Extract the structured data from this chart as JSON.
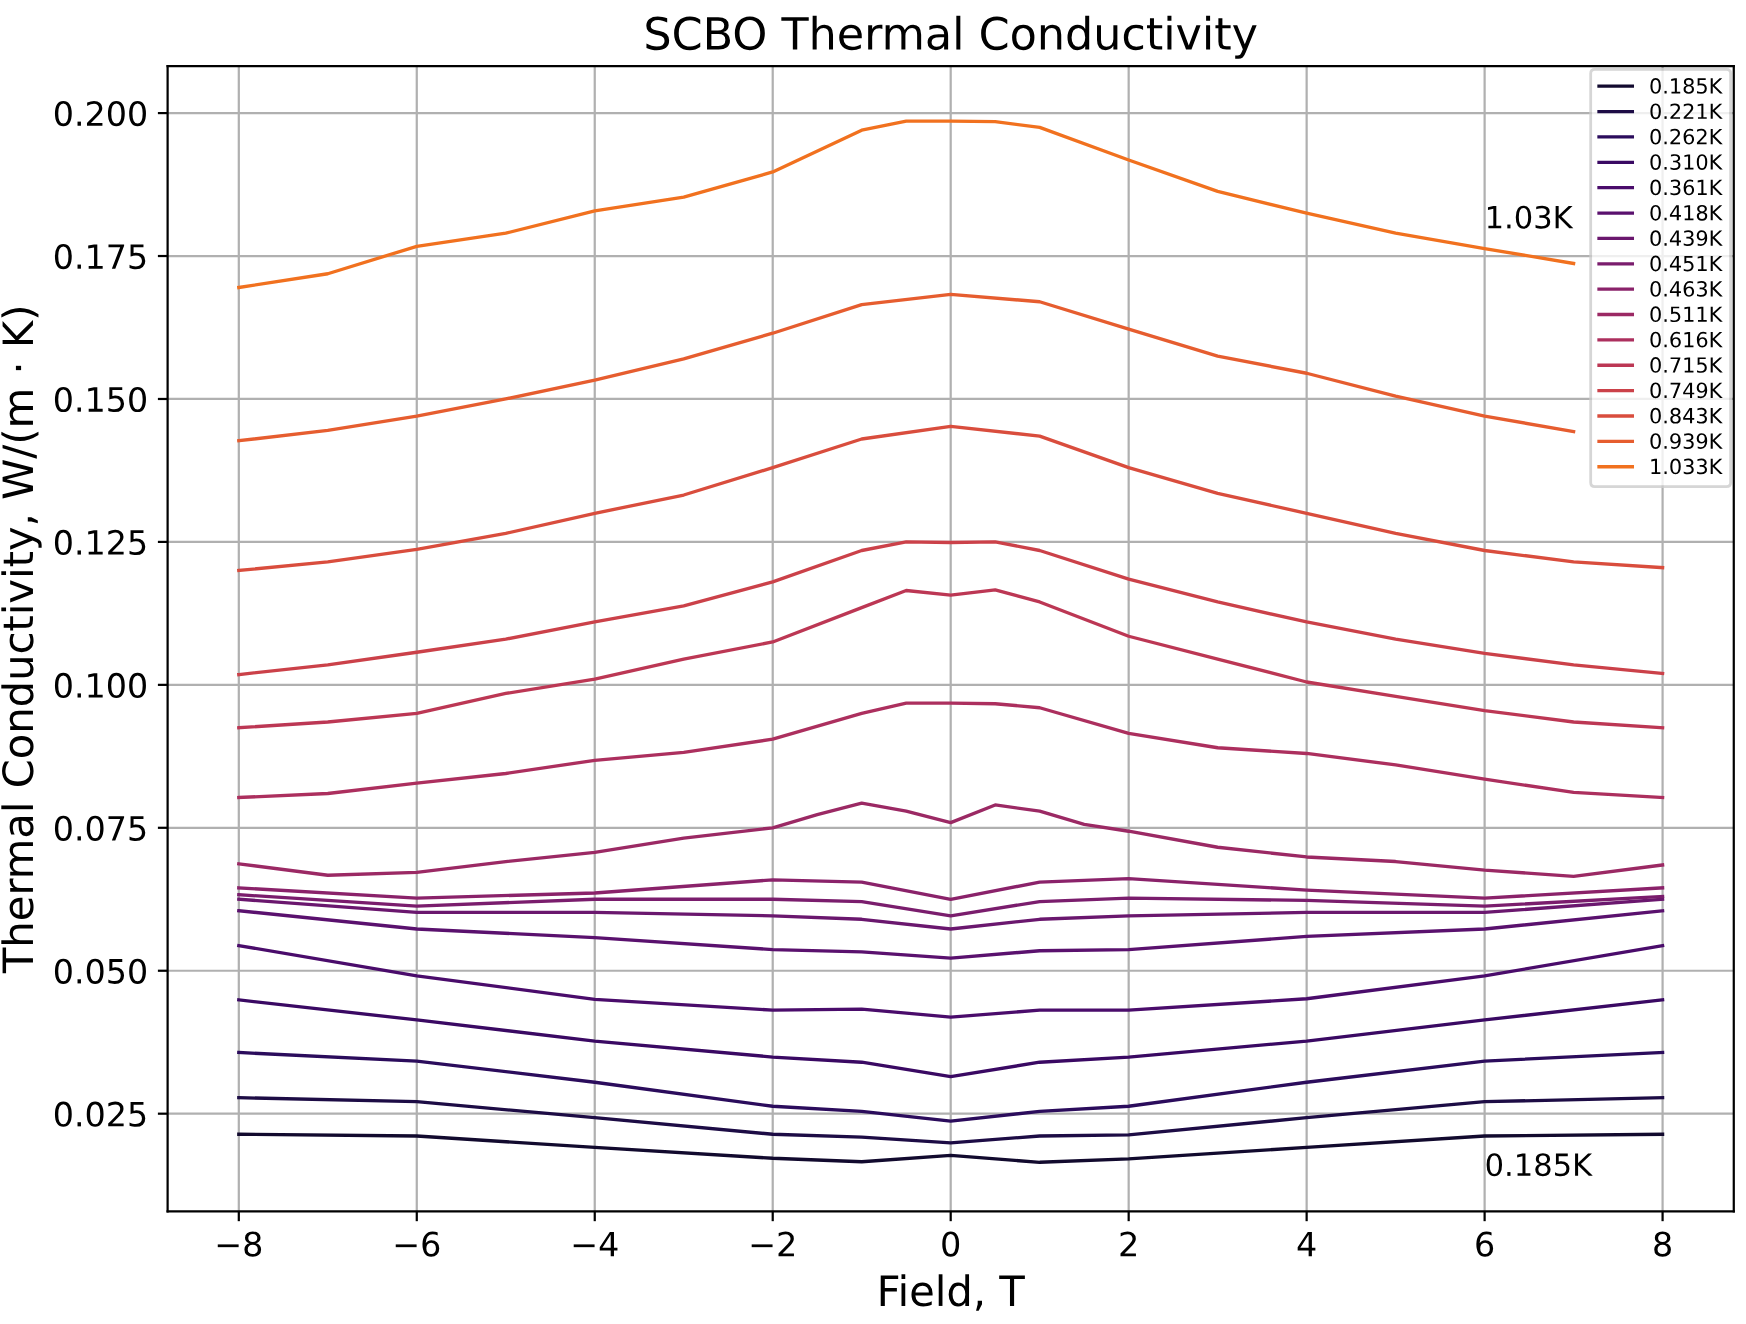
{
  "chart_data": {
    "type": "line",
    "title": "SCBO Thermal Conductivity",
    "xlabel": "Field, T",
    "ylabel": "Thermal Conductivity, W/(m ⋅ K)",
    "xlim": [
      -8.8,
      8.8
    ],
    "ylim": [
      0.0079,
      0.2082
    ],
    "xticks": [
      {
        "value": -8,
        "label": "−8"
      },
      {
        "value": -6,
        "label": "−6"
      },
      {
        "value": -4,
        "label": "−4"
      },
      {
        "value": -2,
        "label": "−2"
      },
      0,
      2,
      4,
      6,
      8
    ],
    "yticks": [
      0.025,
      {
        "value": 0.05,
        "label": "0.050"
      },
      0.075,
      {
        "value": 0.1,
        "label": "0.100"
      },
      0.125,
      {
        "value": 0.15,
        "label": "0.150"
      },
      0.175,
      {
        "value": 0.2,
        "label": "0.200"
      }
    ],
    "grid": true,
    "legend": "top right",
    "marker": "none",
    "line_style": "solid",
    "annotations": [
      {
        "text": "1.03K",
        "x": 6,
        "y": 0.1763
      },
      {
        "text": "0.185K",
        "x": 6,
        "y": 0.0211
      }
    ],
    "series": [
      {
        "name": "0.185K",
        "color": "#120a2e",
        "x": [
          -8,
          -6,
          -4,
          -2,
          -1,
          0,
          1,
          2,
          4,
          6,
          8
        ],
        "values": [
          0.0214,
          0.0211,
          0.0191,
          0.0172,
          0.0166,
          0.0177,
          0.0165,
          0.0171,
          0.0191,
          0.0211,
          0.0214
        ]
      },
      {
        "name": "0.221K",
        "color": "#1d0c45",
        "x": [
          -8,
          -6,
          -4,
          -2,
          -1,
          0,
          1,
          2,
          4,
          6,
          8
        ],
        "values": [
          0.0278,
          0.0271,
          0.0243,
          0.0214,
          0.0209,
          0.0199,
          0.0211,
          0.0213,
          0.0243,
          0.0271,
          0.0278
        ]
      },
      {
        "name": "0.262K",
        "color": "#2b0c5c",
        "x": [
          -8,
          -6,
          -4,
          -2,
          -1,
          0,
          1,
          2,
          4,
          6,
          8
        ],
        "values": [
          0.0357,
          0.0342,
          0.0305,
          0.0263,
          0.0254,
          0.0237,
          0.0254,
          0.0263,
          0.0305,
          0.0342,
          0.0357
        ]
      },
      {
        "name": "0.310K",
        "color": "#3a0963",
        "x": [
          -8,
          -6,
          -4,
          -2,
          -1,
          0,
          1,
          2,
          4,
          6,
          8
        ],
        "values": [
          0.0449,
          0.0414,
          0.0377,
          0.0349,
          0.034,
          0.0315,
          0.034,
          0.0349,
          0.0377,
          0.0414,
          0.0449
        ]
      },
      {
        "name": "0.361K",
        "color": "#4a0c6b",
        "x": [
          -8,
          -6,
          -4,
          -2,
          -1,
          0,
          1,
          2,
          4,
          6,
          8
        ],
        "values": [
          0.0544,
          0.0491,
          0.045,
          0.0431,
          0.0433,
          0.0419,
          0.0431,
          0.0431,
          0.0451,
          0.0491,
          0.0544
        ]
      },
      {
        "name": "0.418K",
        "color": "#5a116e",
        "x": [
          -8,
          -6,
          -4,
          -2,
          -1,
          0,
          1,
          2,
          4,
          6,
          8
        ],
        "values": [
          0.0605,
          0.0573,
          0.0558,
          0.0537,
          0.0533,
          0.0522,
          0.0535,
          0.0537,
          0.056,
          0.0573,
          0.0605
        ]
      },
      {
        "name": "0.439K",
        "color": "#6a176e",
        "x": [
          -8,
          -6,
          -4,
          -2,
          -1,
          0,
          1,
          2,
          4,
          6,
          8
        ],
        "values": [
          0.0625,
          0.0602,
          0.0602,
          0.0596,
          0.059,
          0.0573,
          0.059,
          0.0596,
          0.0602,
          0.0602,
          0.0625
        ]
      },
      {
        "name": "0.451K",
        "color": "#7a1d6d",
        "x": [
          -8,
          -6,
          -4,
          -2,
          -1,
          0,
          1,
          2,
          4,
          6,
          8
        ],
        "values": [
          0.0633,
          0.0613,
          0.0625,
          0.0625,
          0.0621,
          0.0596,
          0.0621,
          0.0627,
          0.0623,
          0.0613,
          0.063
        ]
      },
      {
        "name": "0.463K",
        "color": "#8a226a",
        "x": [
          -8,
          -6,
          -4,
          -2,
          -1,
          0,
          1,
          2,
          4,
          6,
          8
        ],
        "values": [
          0.0645,
          0.0627,
          0.0636,
          0.0659,
          0.0655,
          0.0625,
          0.0655,
          0.0661,
          0.0641,
          0.0627,
          0.0645
        ]
      },
      {
        "name": "0.511K",
        "color": "#9b2964",
        "x": [
          -8,
          -7,
          -6,
          -5,
          -4,
          -3,
          -2,
          -1.5,
          -1,
          -0.5,
          0,
          0.5,
          1,
          1.5,
          2,
          3,
          4,
          5,
          6,
          7,
          8
        ],
        "values": [
          0.0687,
          0.0667,
          0.0672,
          0.0691,
          0.0707,
          0.0732,
          0.075,
          0.0773,
          0.0793,
          0.0779,
          0.0759,
          0.079,
          0.0779,
          0.0756,
          0.0744,
          0.0716,
          0.0699,
          0.0691,
          0.0676,
          0.0665,
          0.0685
        ]
      },
      {
        "name": "0.616K",
        "color": "#ac2f5e",
        "x": [
          -8,
          -7,
          -6,
          -5,
          -4,
          -3,
          -2,
          -1,
          -0.5,
          0,
          0.5,
          1,
          2,
          3,
          4,
          5,
          6,
          7,
          8
        ],
        "values": [
          0.0803,
          0.081,
          0.0828,
          0.0845,
          0.0868,
          0.0882,
          0.0905,
          0.095,
          0.0968,
          0.0968,
          0.0967,
          0.096,
          0.0915,
          0.089,
          0.088,
          0.086,
          0.0835,
          0.0812,
          0.0803
        ]
      },
      {
        "name": "0.715K",
        "color": "#bc3754",
        "x": [
          -8,
          -7,
          -6,
          -5,
          -4,
          -3,
          -2,
          -1,
          -0.5,
          0,
          0.5,
          1,
          2,
          3,
          4,
          5,
          6,
          7,
          8
        ],
        "values": [
          0.0925,
          0.0935,
          0.095,
          0.0985,
          0.101,
          0.1045,
          0.1075,
          0.1135,
          0.1165,
          0.1157,
          0.1166,
          0.1145,
          0.1085,
          0.1045,
          0.1005,
          0.098,
          0.0955,
          0.0935,
          0.0925
        ]
      },
      {
        "name": "0.749K",
        "color": "#cb4149",
        "x": [
          -8,
          -7,
          -6,
          -5,
          -4,
          -3,
          -2,
          -1,
          -0.5,
          0,
          0.5,
          1,
          2,
          3,
          4,
          5,
          6,
          7,
          8
        ],
        "values": [
          0.1018,
          0.1035,
          0.1057,
          0.108,
          0.111,
          0.1138,
          0.118,
          0.1235,
          0.125,
          0.1249,
          0.125,
          0.1235,
          0.1185,
          0.1145,
          0.111,
          0.108,
          0.1055,
          0.1035,
          0.102
        ]
      },
      {
        "name": "0.843K",
        "color": "#d94d3d",
        "x": [
          -8,
          -7,
          -6,
          -5,
          -4,
          -3,
          -2,
          -1,
          0,
          1,
          2,
          3,
          4,
          5,
          6,
          7,
          8
        ],
        "values": [
          0.12,
          0.1215,
          0.1237,
          0.1265,
          0.13,
          0.1332,
          0.138,
          0.143,
          0.1452,
          0.1435,
          0.138,
          0.1335,
          0.13,
          0.1265,
          0.1235,
          0.1215,
          0.1205
        ]
      },
      {
        "name": "0.939K",
        "color": "#e65d2f",
        "x": [
          -8,
          -7,
          -6,
          -5,
          -4,
          -3,
          -2,
          -1,
          0,
          1,
          2,
          3,
          4,
          5,
          6,
          7
        ],
        "values": [
          0.1427,
          0.1445,
          0.147,
          0.15,
          0.1533,
          0.157,
          0.1615,
          0.1665,
          0.1683,
          0.167,
          0.1622,
          0.1575,
          0.1545,
          0.1505,
          0.147,
          0.1443
        ]
      },
      {
        "name": "1.033K",
        "color": "#f1711f",
        "x": [
          -8,
          -7,
          -6,
          -5,
          -4,
          -3,
          -2,
          -1,
          -0.5,
          0,
          0.5,
          1,
          2,
          3,
          4,
          5,
          6,
          7
        ],
        "values": [
          0.1695,
          0.1719,
          0.1767,
          0.179,
          0.1829,
          0.1853,
          0.1897,
          0.197,
          0.1986,
          0.1986,
          0.1985,
          0.1975,
          0.1918,
          0.1863,
          0.1825,
          0.179,
          0.1763,
          0.1737
        ]
      }
    ]
  }
}
